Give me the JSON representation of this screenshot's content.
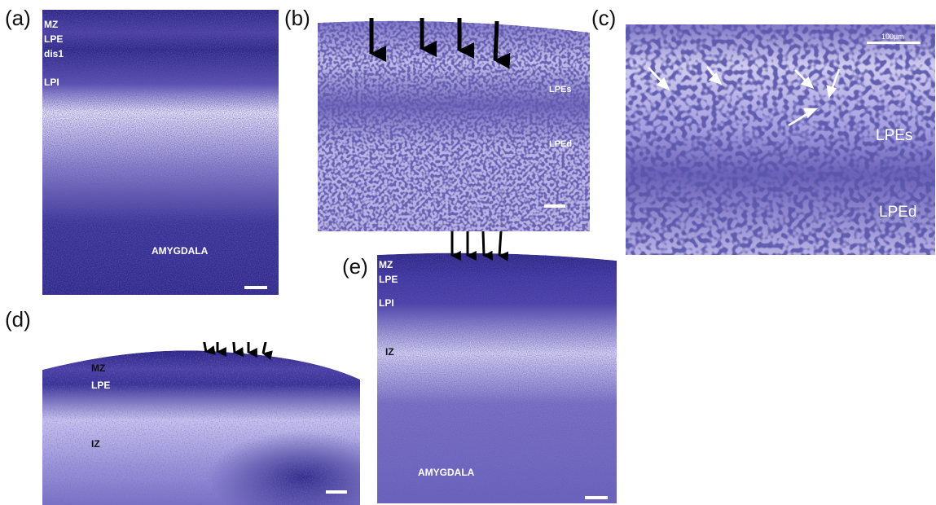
{
  "panels": {
    "a": {
      "letter": "(a)",
      "labels": {
        "mz": "MZ",
        "lpe": "LPE",
        "dis1": "dis1",
        "lpi": "LPI",
        "amygdala": "AMYGDALA"
      }
    },
    "b": {
      "letter": "(b)",
      "labels": {
        "lpes": "LPEs",
        "lped": "LPEd"
      },
      "arrow_count": 4
    },
    "c": {
      "letter": "(c)",
      "labels": {
        "scale": "100µm",
        "lpes": "LPEs",
        "lped": "LPEd"
      },
      "arrow_count": 5
    },
    "d": {
      "letter": "(d)",
      "labels": {
        "mz": "MZ",
        "lpe": "LPE",
        "iz": "IZ"
      },
      "arrow_count": 5
    },
    "e": {
      "letter": "(e)",
      "labels": {
        "mz": "MZ",
        "lpe": "LPE",
        "lpi": "LPI",
        "iz": "IZ",
        "amygdala": "AMYGDALA"
      },
      "arrow_count": 4
    }
  },
  "colors": {
    "stain_dark": "#1e1a6e",
    "stain_mid": "#4b3fa6",
    "stain_light": "#c9c3ec",
    "background": "#ffffff"
  }
}
